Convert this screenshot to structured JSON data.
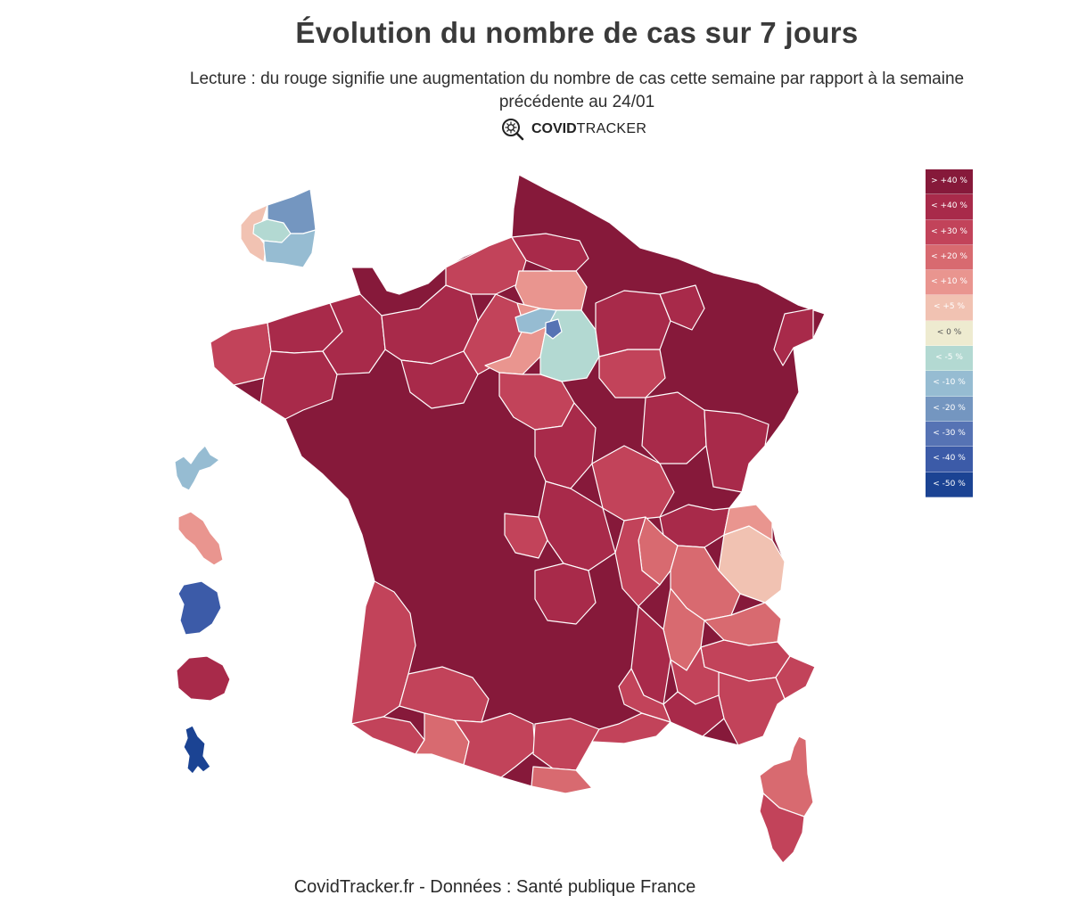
{
  "header": {
    "title": "Évolution du nombre de cas sur 7 jours",
    "subtitle_line1": "Lecture : du rouge signifie une augmentation du nombre de cas cette semaine par rapport à la semaine",
    "subtitle_line2": "précédente au 24/01",
    "brand_bold": "COVID",
    "brand_light": "TRACKER"
  },
  "legend": {
    "items": [
      {
        "label": "> +40 %",
        "color": "#86193a",
        "text_color": "#ffffff"
      },
      {
        "label": "< +40 %",
        "color": "#a82a4a",
        "text_color": "#ffffff"
      },
      {
        "label": "< +30 %",
        "color": "#c2435a",
        "text_color": "#ffffff"
      },
      {
        "label": "< +20 %",
        "color": "#d86a70",
        "text_color": "#ffffff"
      },
      {
        "label": "< +10 %",
        "color": "#e9958f",
        "text_color": "#ffffff"
      },
      {
        "label": "< +5 %",
        "color": "#f1c2b2",
        "text_color": "#ffffff"
      },
      {
        "label": "< 0 %",
        "color": "#eeebd0",
        "text_color": "#555555"
      },
      {
        "label": "< -5 %",
        "color": "#b3d9d2",
        "text_color": "#ffffff"
      },
      {
        "label": "< -10 %",
        "color": "#96bcd2",
        "text_color": "#ffffff"
      },
      {
        "label": "< -20 %",
        "color": "#7496c0",
        "text_color": "#ffffff"
      },
      {
        "label": "< -30 %",
        "color": "#5673b4",
        "text_color": "#ffffff"
      },
      {
        "label": "< -40 %",
        "color": "#3c5ba8",
        "text_color": "#ffffff"
      },
      {
        "label": "< -50 %",
        "color": "#1b4393",
        "text_color": "#ffffff"
      }
    ]
  },
  "footer": {
    "source": "CovidTracker.fr - Données : Santé publique France"
  }
}
